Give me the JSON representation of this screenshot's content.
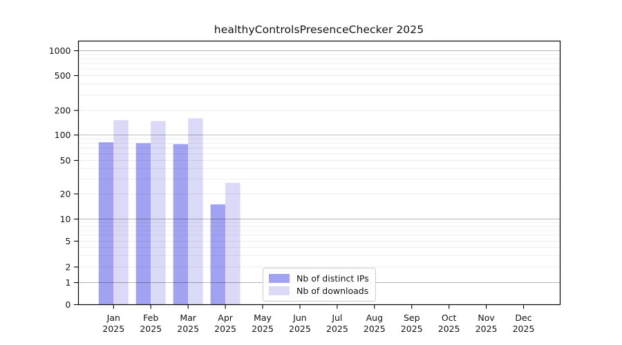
{
  "title": "healthyControlsPresenceChecker 2025",
  "chart_data": {
    "type": "bar",
    "title": "healthyControlsPresenceChecker 2025",
    "categories": [
      "Jan 2025",
      "Feb 2025",
      "Mar 2025",
      "Apr 2025",
      "May 2025",
      "Jun 2025",
      "Jul 2025",
      "Aug 2025",
      "Sep 2025",
      "Oct 2025",
      "Nov 2025",
      "Dec 2025"
    ],
    "x_tick_month_line": [
      "Jan",
      "Feb",
      "Mar",
      "Apr",
      "May",
      "Jun",
      "Jul",
      "Aug",
      "Sep",
      "Oct",
      "Nov",
      "Dec"
    ],
    "x_tick_year_line": "2025",
    "series": [
      {
        "name": "Nb of distinct IPs",
        "color": "#a2a2f2",
        "values": [
          82,
          80,
          78,
          15,
          0,
          0,
          0,
          0,
          0,
          0,
          0,
          0
        ]
      },
      {
        "name": "Nb of downloads",
        "color": "#dadaf8",
        "values": [
          152,
          148,
          160,
          27,
          0,
          0,
          0,
          0,
          0,
          0,
          0,
          0
        ]
      }
    ],
    "y_axis": {
      "scale": "symlog",
      "ticks": [
        0,
        1,
        2,
        5,
        10,
        20,
        50,
        100,
        200,
        500,
        1000
      ],
      "minor_gridlines": [
        2,
        3,
        4,
        5,
        6,
        7,
        8,
        9,
        20,
        30,
        40,
        50,
        60,
        70,
        80,
        90,
        200,
        300,
        400,
        500,
        600,
        700,
        800,
        900
      ],
      "major_gridlines": [
        1,
        10,
        100,
        1000
      ],
      "range": [
        0,
        1300
      ]
    },
    "xlabel": "",
    "ylabel": "",
    "grid": "horizontal, major and minor",
    "legend_position": "inside lower-left-center",
    "colors": {
      "distinct_ips_bar": "#a2a2f2",
      "downloads_bar": "#dadaf8",
      "major_grid": "rgba(0,0,0,0.30)",
      "minor_grid": "rgba(0,0,0,0.08)",
      "spine": "#000000",
      "text": "#111111"
    }
  }
}
